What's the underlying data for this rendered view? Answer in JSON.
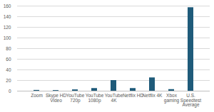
{
  "chart_data": {
    "type": "bar",
    "categories": [
      "Zoom",
      "Skype HD Video",
      "YouTube 720p",
      "YouTube 1080p",
      "YouTube 4K",
      "Netflix HD",
      "Netflix 4K",
      "Xbox gaming",
      "U.S. Speedtest Average"
    ],
    "values": [
      1.5,
      1.2,
      2.5,
      5,
      20,
      5,
      25,
      3,
      157
    ],
    "color": "#1f5b7a",
    "ylim": [
      0,
      160
    ],
    "yticks": [
      0,
      20,
      40,
      60,
      80,
      100,
      120,
      140,
      160
    ],
    "grid": true
  }
}
